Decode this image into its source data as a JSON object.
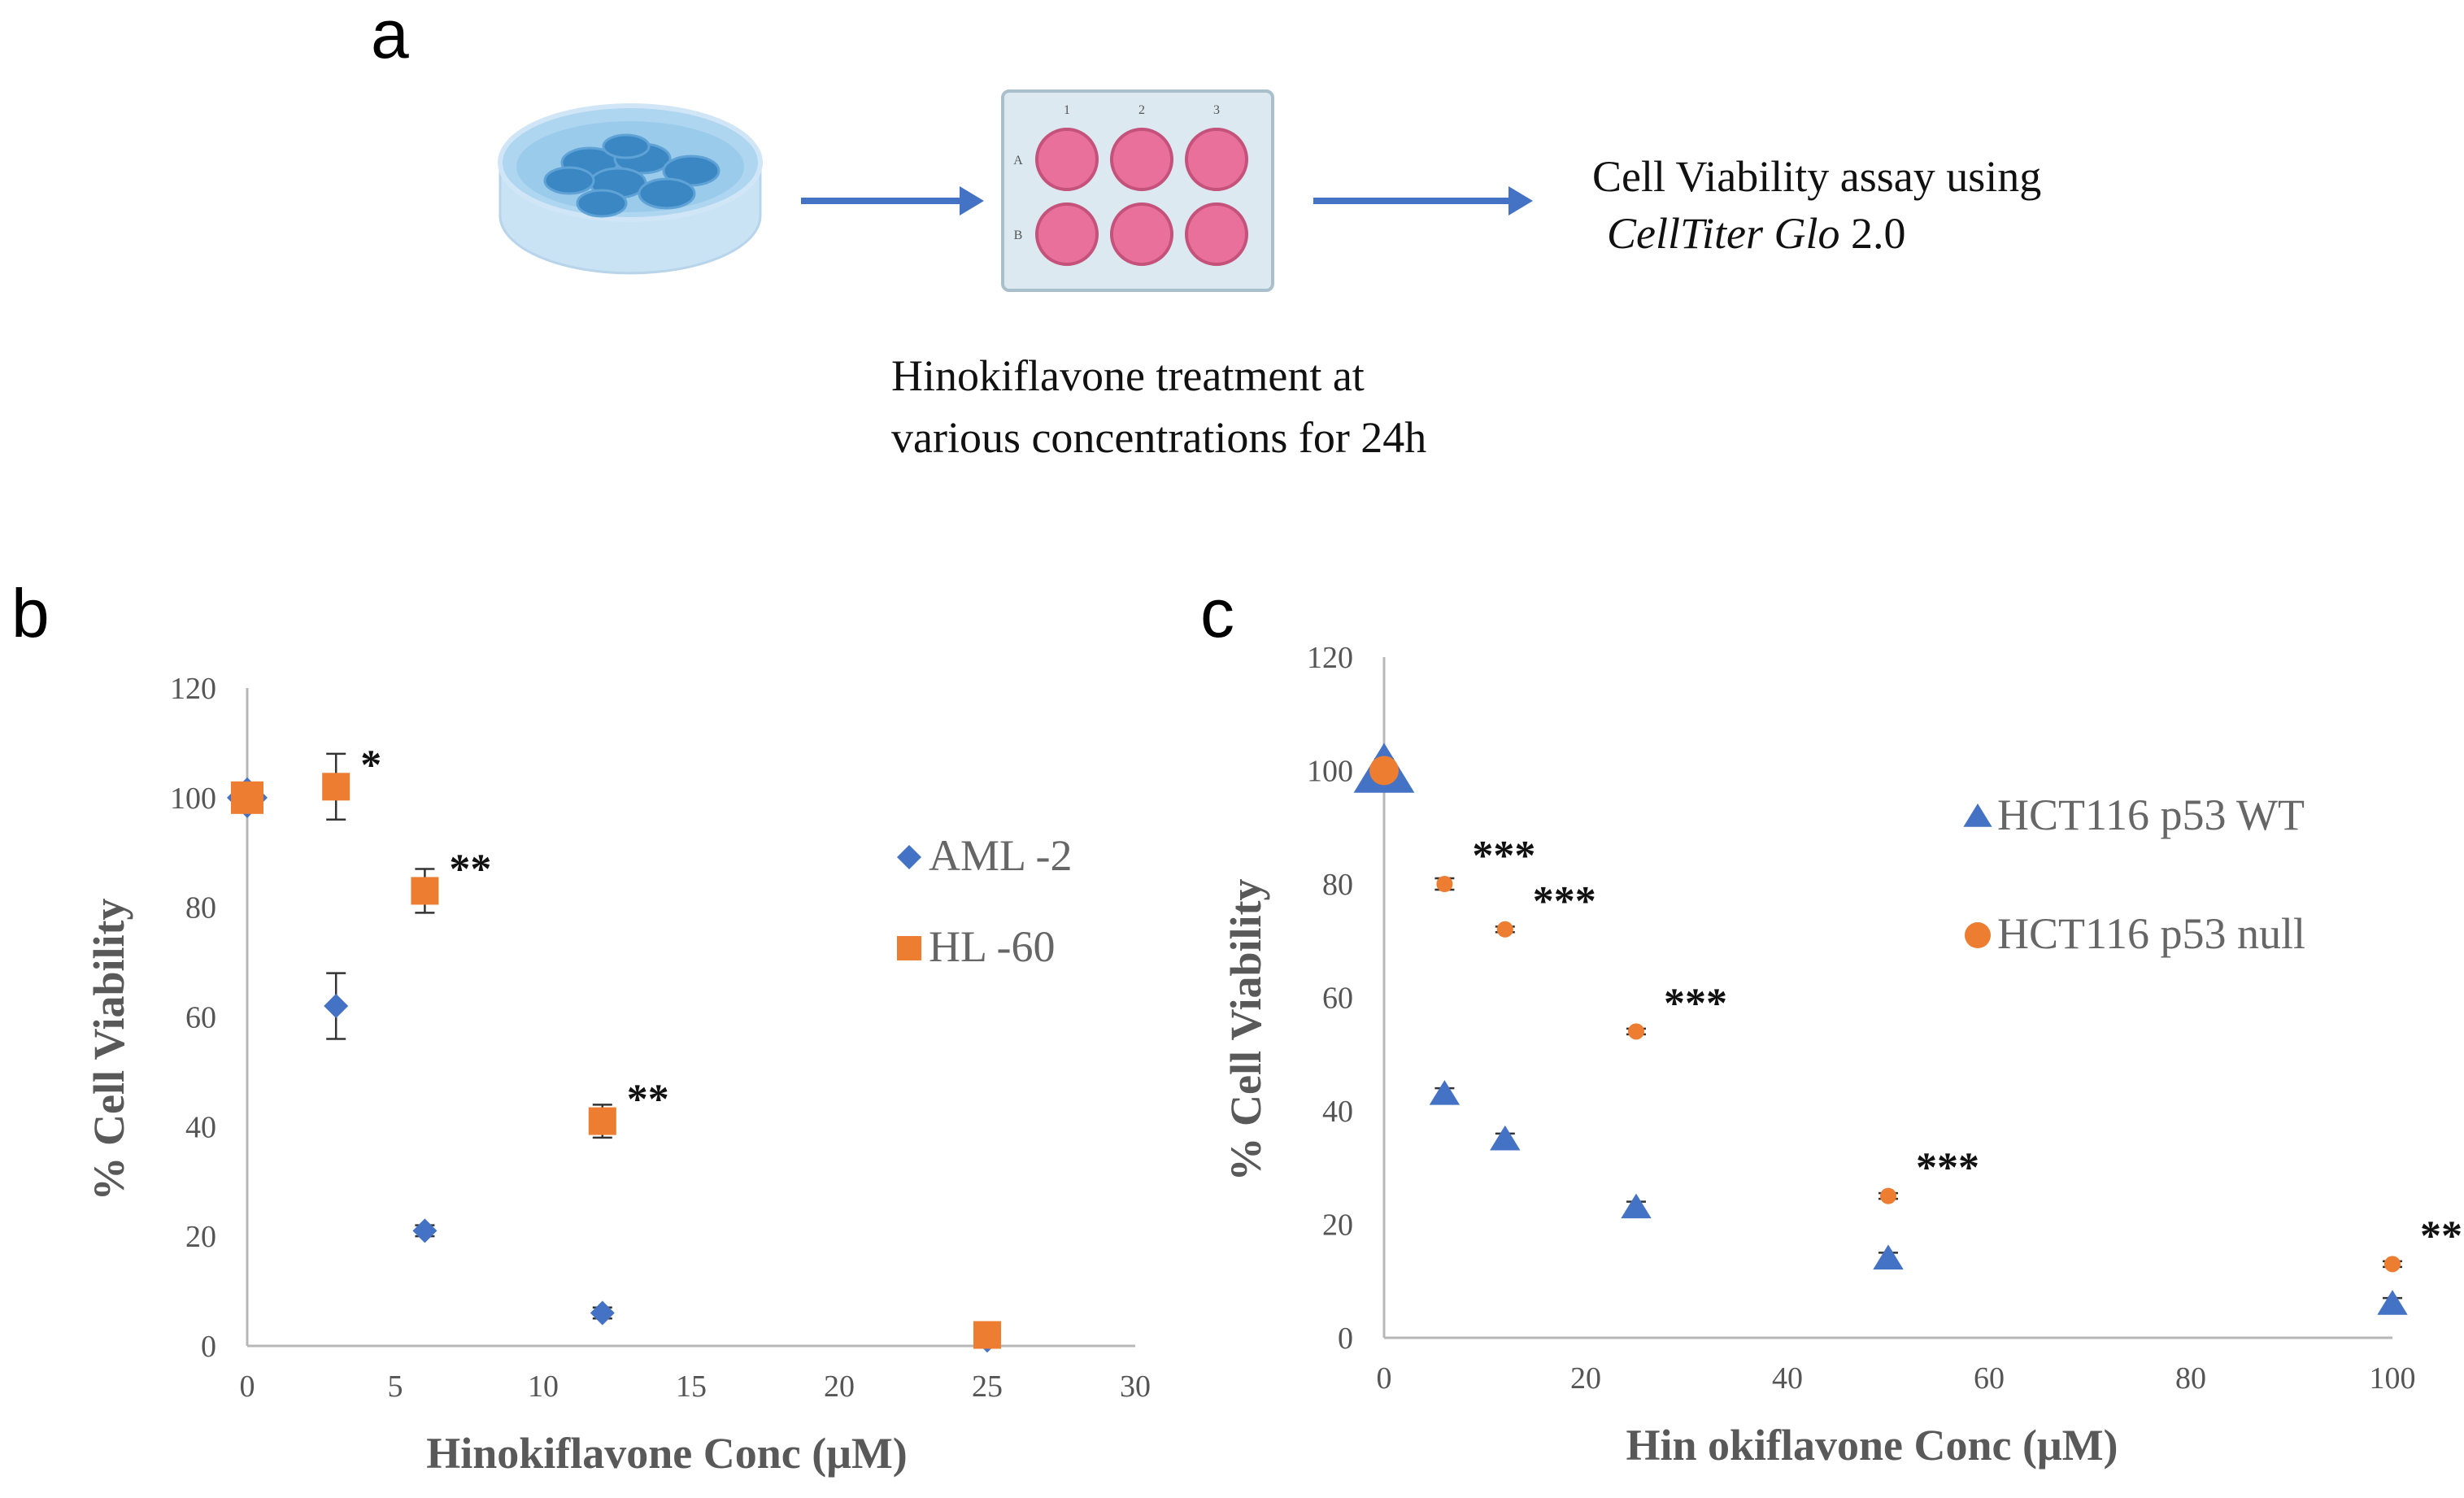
{
  "panels": {
    "a": {
      "letter": "a",
      "viability_text": "Cell Viability assay using",
      "kit_italic": "CellTiter Glo",
      "kit_version": " 2.0",
      "treatment_line1": "Hinokiflavone treatment at",
      "treatment_line2": "various concentrations for 24h",
      "plate_cols": [
        "1",
        "2",
        "3"
      ],
      "plate_rows": [
        "A",
        "B"
      ],
      "colors": {
        "arrow": "#4472c4",
        "well": "#e8709a",
        "dish": "#aad4ee",
        "cells": "#3b87c4"
      }
    },
    "b": {
      "letter": "b"
    },
    "c": {
      "letter": "c"
    }
  },
  "chart_data": [
    {
      "id": "b",
      "type": "scatter",
      "title": "",
      "xlabel": "Hinokiflavone Conc (μM)",
      "ylabel": "% Cell Viability",
      "xlim": [
        0,
        30
      ],
      "ylim": [
        0,
        120
      ],
      "xticks": [
        0,
        5,
        10,
        15,
        20,
        25,
        30
      ],
      "yticks": [
        0,
        20,
        40,
        60,
        80,
        100,
        120
      ],
      "legend_position": "right",
      "series": [
        {
          "name": "AML -2",
          "marker": "diamond",
          "color": "#4472c4",
          "x": [
            0,
            3,
            6,
            12,
            25
          ],
          "y": [
            100,
            62,
            21,
            6,
            1
          ],
          "err": [
            0,
            6,
            1,
            1,
            0
          ]
        },
        {
          "name": "HL -60",
          "marker": "square",
          "color": "#ed7d31",
          "x": [
            0,
            3,
            6,
            12,
            25
          ],
          "y": [
            100,
            102,
            83,
            41,
            2
          ],
          "err": [
            0,
            6,
            4,
            3,
            0
          ]
        }
      ],
      "annotations": [
        {
          "x": 3,
          "y": 102,
          "text": "*"
        },
        {
          "x": 6,
          "y": 83,
          "text": "**"
        },
        {
          "x": 12,
          "y": 41,
          "text": "**"
        }
      ]
    },
    {
      "id": "c",
      "type": "scatter",
      "title": "",
      "xlabel": "Hin okiflavone Conc (μM)",
      "ylabel": "% Cell Viability",
      "xlim": [
        0,
        100
      ],
      "ylim": [
        0,
        120
      ],
      "xticks": [
        0,
        20,
        40,
        60,
        80,
        100
      ],
      "yticks": [
        0,
        20,
        40,
        60,
        80,
        100,
        120
      ],
      "legend_position": "right",
      "series": [
        {
          "name": "HCT116 p53 WT",
          "marker": "triangle",
          "color": "#4472c4",
          "x": [
            0,
            6,
            12,
            25,
            50,
            100
          ],
          "y": [
            100,
            43,
            35,
            23,
            14,
            6
          ],
          "err": [
            2,
            1,
            1,
            1,
            1,
            1
          ]
        },
        {
          "name": "HCT116 p53 null",
          "marker": "circle",
          "color": "#ed7d31",
          "x": [
            0,
            6,
            12,
            25,
            50,
            100
          ],
          "y": [
            100,
            80,
            72,
            54,
            25,
            13
          ],
          "err": [
            1,
            1,
            0.5,
            0.5,
            0.5,
            0.5
          ]
        }
      ],
      "annotations": [
        {
          "x": 6,
          "y": 80,
          "text": "***"
        },
        {
          "x": 12,
          "y": 72,
          "text": "***"
        },
        {
          "x": 25,
          "y": 54,
          "text": "***"
        },
        {
          "x": 50,
          "y": 25,
          "text": "***"
        },
        {
          "x": 100,
          "y": 13,
          "text": "**"
        }
      ]
    }
  ]
}
